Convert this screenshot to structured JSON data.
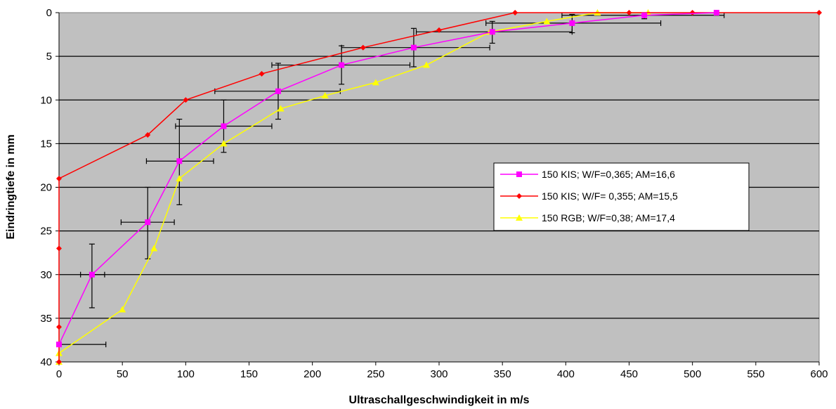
{
  "chart_data": {
    "type": "line",
    "title": "",
    "xlabel": "Ultraschallgeschwindigkeit in m/s",
    "ylabel": "Eindringtiefe in mm",
    "xlim": [
      0,
      600
    ],
    "ylim": [
      0,
      40
    ],
    "y_inverted": true,
    "x_ticks": [
      "0",
      "50",
      "100",
      "150",
      "200",
      "250",
      "300",
      "350",
      "400",
      "450",
      "500",
      "550",
      "600"
    ],
    "y_ticks": [
      "0",
      "5",
      "10",
      "15",
      "20",
      "25",
      "30",
      "35",
      "40"
    ],
    "grid": "horizontal",
    "plot_background": "#c0c0c0",
    "legend_position": "right",
    "series": [
      {
        "name": "150 KIS; W/F=0,365; AM=16,6",
        "color": "#ff00ff",
        "marker": "square",
        "x": [
          0,
          26,
          70,
          95,
          130,
          173,
          223,
          280,
          342,
          405,
          462,
          519
        ],
        "y": [
          38,
          30,
          24,
          17,
          13,
          9,
          6,
          4,
          2.2,
          1.2,
          0.3,
          0
        ],
        "error_bars": [
          {
            "x": 0,
            "y": 38,
            "x_low": 0,
            "x_high": 37,
            "y_low": 38,
            "y_high": 38
          },
          {
            "x": 26,
            "y": 30,
            "x_low": 17,
            "x_high": 36,
            "y_low": 26.5,
            "y_high": 33.8
          },
          {
            "x": 70,
            "y": 24,
            "x_low": 49,
            "x_high": 91,
            "y_low": 20,
            "y_high": 28.2
          },
          {
            "x": 95,
            "y": 17,
            "x_low": 69,
            "x_high": 122,
            "y_low": 12.2,
            "y_high": 22
          },
          {
            "x": 130,
            "y": 13,
            "x_low": 92,
            "x_high": 168,
            "y_low": 10,
            "y_high": 16
          },
          {
            "x": 173,
            "y": 9,
            "x_low": 123,
            "x_high": 222,
            "y_low": 5.8,
            "y_high": 12.2
          },
          {
            "x": 223,
            "y": 6,
            "x_low": 168,
            "x_high": 277,
            "y_low": 3.8,
            "y_high": 8.2
          },
          {
            "x": 280,
            "y": 4,
            "x_low": 223,
            "x_high": 340,
            "y_low": 1.8,
            "y_high": 6.2
          },
          {
            "x": 342,
            "y": 2.2,
            "x_low": 282,
            "x_high": 405,
            "y_low": 1,
            "y_high": 3.5
          },
          {
            "x": 405,
            "y": 1.2,
            "x_low": 337,
            "x_high": 475,
            "y_low": 0.2,
            "y_high": 2.3
          },
          {
            "x": 462,
            "y": 0.3,
            "x_low": 397,
            "x_high": 525,
            "y_low": 0,
            "y_high": 0.7
          }
        ]
      },
      {
        "name": "150 KIS; W/F= 0,355; AM=15,5",
        "color": "#ff0000",
        "marker": "diamond",
        "x": [
          0,
          0,
          0,
          0,
          70,
          100,
          160,
          240,
          300,
          360,
          450,
          500,
          600
        ],
        "y": [
          40,
          36,
          27,
          19,
          14,
          10,
          7,
          4,
          2,
          0,
          0,
          0,
          0
        ]
      },
      {
        "name": "150 RGB; W/F=0,38; AM=17,4",
        "color": "#ffff00",
        "marker": "triangle",
        "x": [
          0,
          0,
          50,
          75,
          95,
          130,
          175,
          210,
          250,
          290,
          340,
          385,
          425,
          465
        ],
        "y": [
          40,
          39,
          34,
          27,
          19,
          15,
          11,
          9.5,
          8,
          6,
          2.2,
          1,
          0,
          0
        ]
      }
    ]
  }
}
